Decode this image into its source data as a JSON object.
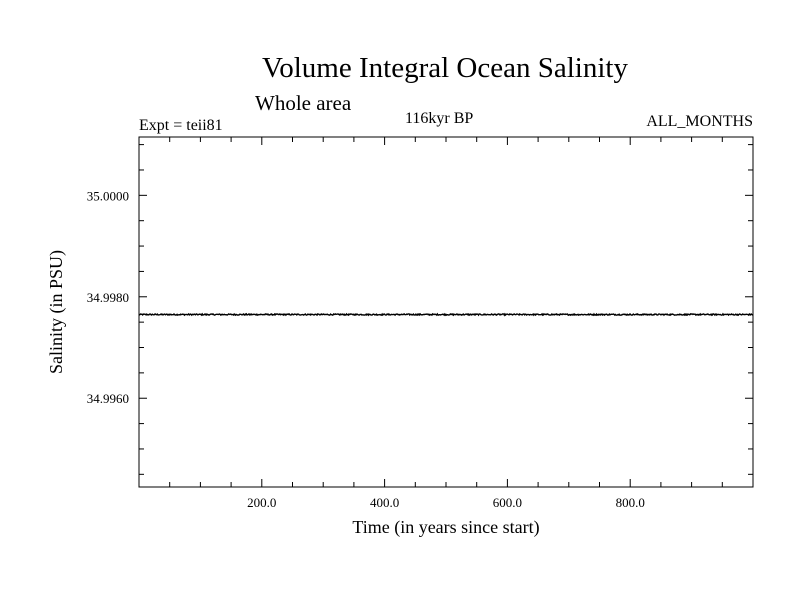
{
  "chart_data": {
    "type": "line",
    "title": "Volume Integral Ocean Salinity",
    "subtitle": "Whole area",
    "header_left": "Expt = teii81",
    "header_center": "116kyr BP",
    "header_right": "ALL_MONTHS",
    "xlabel": "Time (in years since start)",
    "ylabel": "Salinity (in PSU)",
    "xlim": [
      0,
      1000
    ],
    "ylim": [
      34.99425,
      35.00115
    ],
    "x_ticks": [
      200,
      400,
      600,
      800
    ],
    "x_tick_labels": [
      "200.0",
      "400.0",
      "600.0",
      "800.0"
    ],
    "x_minor_step": 50,
    "y_ticks": [
      34.996,
      34.998,
      35.0
    ],
    "y_tick_labels": [
      "34.9960",
      "34.9980",
      "35.0000"
    ],
    "y_minor_step": 0.0005,
    "grid": false,
    "series": [
      {
        "x_start": 0,
        "x_end": 1000,
        "mean": 34.99765,
        "noise_amplitude": 1.2e-05,
        "color": "#000000"
      }
    ]
  }
}
